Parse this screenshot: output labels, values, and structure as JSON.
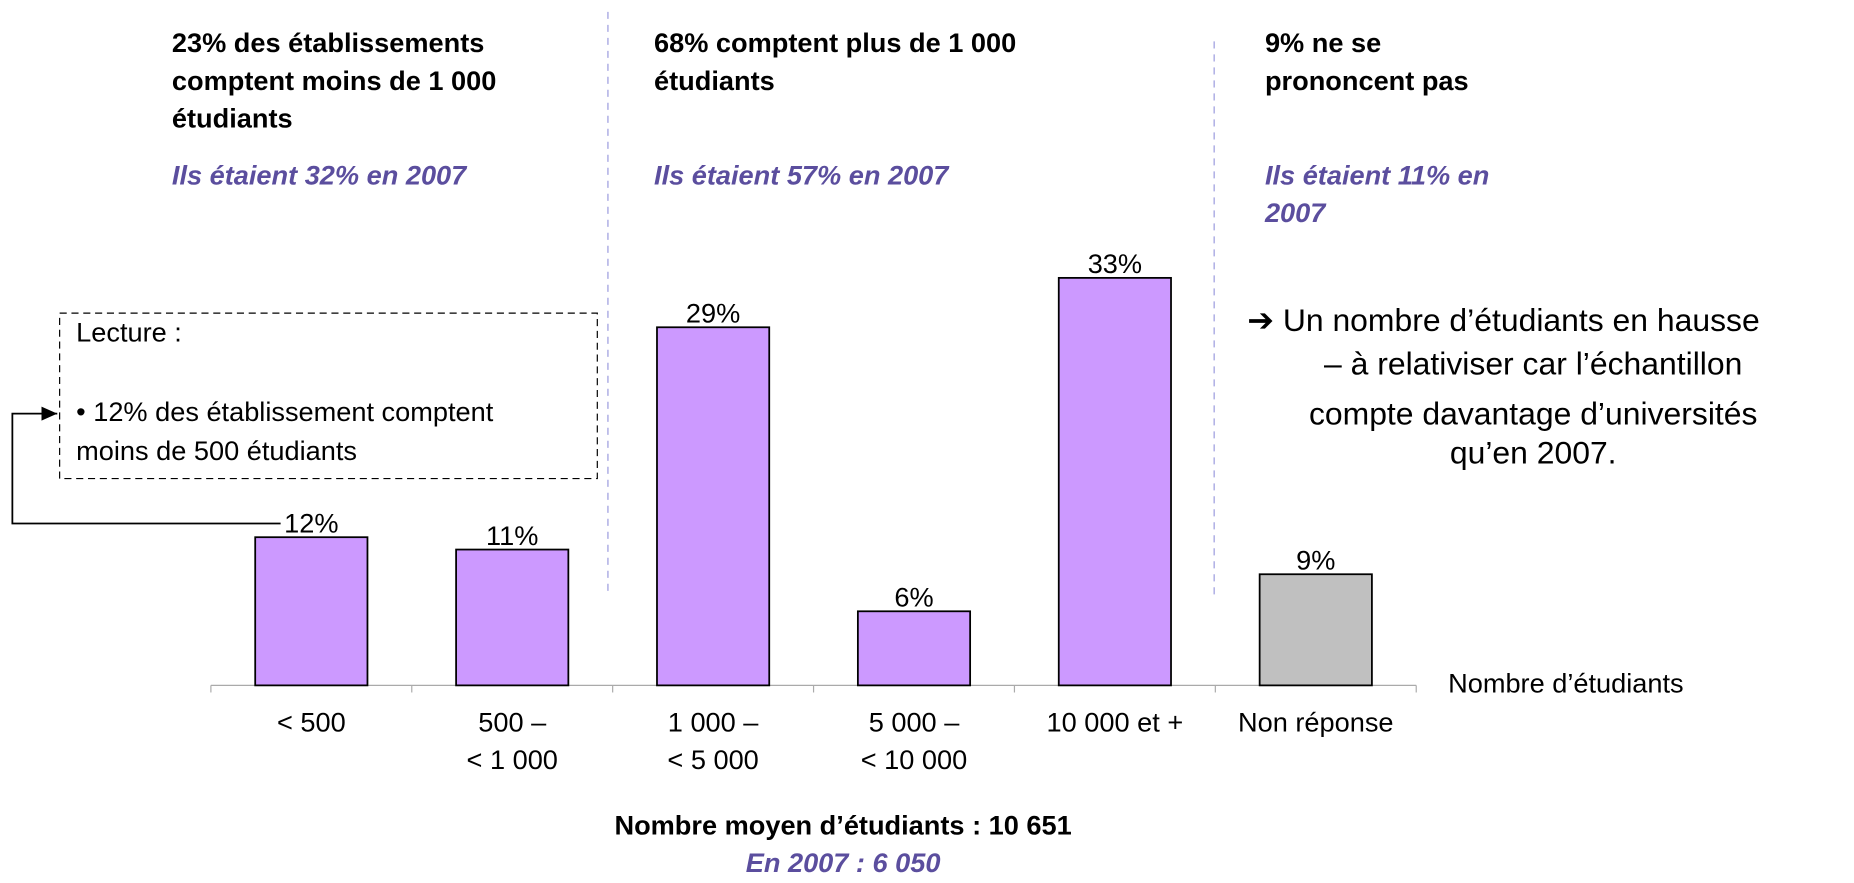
{
  "chart_data": {
    "type": "bar",
    "categories": [
      "< 500",
      "500 –\n< 1 000",
      "1 000 –\n< 5 000",
      "5 000 –\n< 10 000",
      "10 000 et +",
      "Non réponse"
    ],
    "values": [
      12,
      11,
      29,
      6,
      33,
      9
    ],
    "value_labels": [
      "12%",
      "11%",
      "29%",
      "6%",
      "33%",
      "9%"
    ],
    "colors": [
      "#cc99ff",
      "#cc99ff",
      "#cc99ff",
      "#cc99ff",
      "#cc99ff",
      "#c0c0c0"
    ],
    "x_label": "Nombre d’étudiants",
    "groups": [
      {
        "lines": [
          "23% des établissements",
          "comptent moins de 1 000",
          "étudiants"
        ],
        "note": [
          "Ils étaient 32% en 2007"
        ]
      },
      {
        "lines": [
          "68% comptent plus de 1 000",
          "étudiants"
        ],
        "note": [
          "Ils étaient 57% en 2007"
        ]
      },
      {
        "lines": [
          "9% ne se",
          "prononcent pas"
        ],
        "note": [
          "Ils étaient 11% en",
          "2007"
        ]
      }
    ],
    "reading": {
      "title": "Lecture :",
      "lines": [
        "• 12% des établissement comptent",
        "moins de 500 étudiants"
      ]
    },
    "comment": [
      "➔ Un nombre d’étudiants en hausse",
      "– à relativiser car l’échantillon",
      "compte davantage d’universités",
      "qu’en 2007."
    ],
    "footer": {
      "average": "Nombre moyen d’étudiants : 10 651",
      "previous": "En 2007 : 6 050"
    }
  }
}
